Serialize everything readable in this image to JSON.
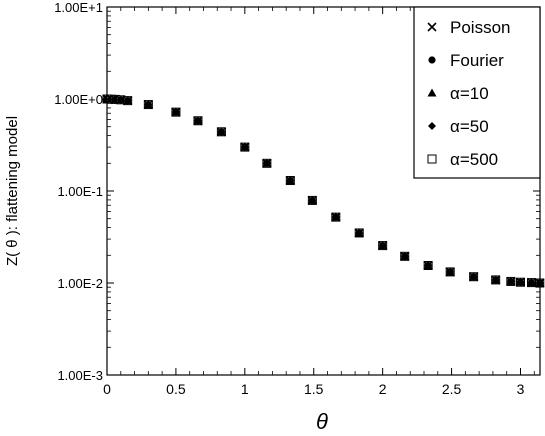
{
  "chart_data": {
    "type": "scatter",
    "title": "",
    "xlabel": "θ",
    "ylabel": "Z( θ ): flattening model",
    "xlim": [
      0,
      3.14159
    ],
    "ylim": [
      0.001,
      10
    ],
    "yscale": "log",
    "grid": false,
    "legend_position": "top-right",
    "x_ticks": [
      "0",
      "0.5",
      "1",
      "1.5",
      "2",
      "2.5",
      "3"
    ],
    "x_tick_values": [
      0,
      0.5,
      1,
      1.5,
      2,
      2.5,
      3
    ],
    "y_ticks": [
      "1.00E-3",
      "1.00E-2",
      "1.00E-1",
      "1.00E+0",
      "1.00E+1"
    ],
    "y_tick_values": [
      0.001,
      0.01,
      0.1,
      1,
      10
    ],
    "x": [
      0,
      0.03,
      0.06,
      0.1,
      0.15,
      0.3,
      0.5,
      0.66,
      0.83,
      1.0,
      1.16,
      1.33,
      1.49,
      1.66,
      1.83,
      2.0,
      2.16,
      2.33,
      2.49,
      2.66,
      2.82,
      2.93,
      3.0,
      3.08,
      3.14
    ],
    "y": [
      1.0,
      0.995,
      0.99,
      0.98,
      0.96,
      0.87,
      0.72,
      0.58,
      0.44,
      0.3,
      0.2,
      0.13,
      0.079,
      0.052,
      0.035,
      0.0255,
      0.0195,
      0.0155,
      0.0132,
      0.0117,
      0.0108,
      0.0104,
      0.0102,
      0.0101,
      0.01
    ],
    "series": [
      {
        "name": "Poisson",
        "marker": "x"
      },
      {
        "name": "Fourier",
        "marker": "circle"
      },
      {
        "name": "α=10",
        "marker": "triangle"
      },
      {
        "name": "α=50",
        "marker": "diamond"
      },
      {
        "name": "α=500",
        "marker": "square-open"
      }
    ]
  }
}
